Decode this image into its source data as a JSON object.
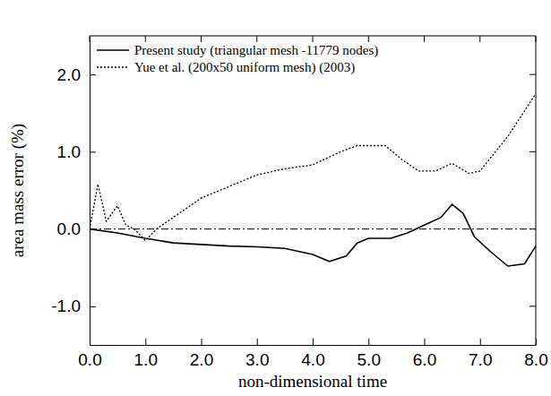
{
  "chart_data": {
    "type": "line",
    "x_label": "non-dimensional time",
    "y_label": "area mass error (%)",
    "xlim": [
      0,
      8
    ],
    "xticks": [
      {
        "value": 0,
        "label": "0.0"
      },
      {
        "value": 1,
        "label": "1.0"
      },
      {
        "value": 2,
        "label": "2.0"
      },
      {
        "value": 3,
        "label": "3.0"
      },
      {
        "value": 4,
        "label": "4.0"
      },
      {
        "value": 5,
        "label": "5.0"
      },
      {
        "value": 6,
        "label": "6.0"
      },
      {
        "value": 7,
        "label": "7.0"
      },
      {
        "value": 8,
        "label": "8.0"
      }
    ],
    "ylim": [
      -1.5,
      2.5
    ],
    "yticks": [
      {
        "value": -1,
        "label": "-1.0"
      },
      {
        "value": 0,
        "label": "0.0"
      },
      {
        "value": 1,
        "label": "1.0"
      },
      {
        "value": 2,
        "label": "2.0"
      }
    ],
    "hlines": [
      0
    ],
    "legend": "upper left",
    "grid": false,
    "series": [
      {
        "name": "Present study (triangular mesh -11779 nodes)",
        "color": "#000000",
        "line_style": "solid",
        "x": [
          0,
          0.5,
          1.0,
          1.5,
          2.0,
          2.5,
          3.0,
          3.5,
          4.0,
          4.3,
          4.6,
          4.8,
          5.0,
          5.4,
          5.7,
          6.0,
          6.3,
          6.5,
          6.7,
          6.9,
          7.2,
          7.5,
          7.8,
          8.0
        ],
        "values": [
          0,
          -0.05,
          -0.12,
          -0.18,
          -0.2,
          -0.22,
          -0.23,
          -0.25,
          -0.33,
          -0.42,
          -0.35,
          -0.18,
          -0.12,
          -0.12,
          -0.05,
          0.05,
          0.15,
          0.32,
          0.2,
          -0.1,
          -0.3,
          -0.48,
          -0.45,
          -0.22
        ]
      },
      {
        "name": "Yue et al. (200x50 uniform mesh) (2003)",
        "color": "#000000",
        "line_style": "dotted",
        "x": [
          0,
          0.15,
          0.3,
          0.5,
          0.65,
          0.8,
          1.0,
          1.2,
          1.5,
          2.0,
          2.5,
          3.0,
          3.5,
          4.0,
          4.5,
          4.8,
          5.3,
          5.6,
          5.9,
          6.2,
          6.5,
          6.8,
          7.0,
          7.5,
          8.0
        ],
        "values": [
          0,
          0.58,
          0.1,
          0.3,
          0.05,
          0.0,
          -0.15,
          0.0,
          0.15,
          0.4,
          0.55,
          0.7,
          0.78,
          0.83,
          1.0,
          1.08,
          1.08,
          0.9,
          0.75,
          0.75,
          0.85,
          0.72,
          0.75,
          1.2,
          1.75
        ]
      }
    ]
  }
}
